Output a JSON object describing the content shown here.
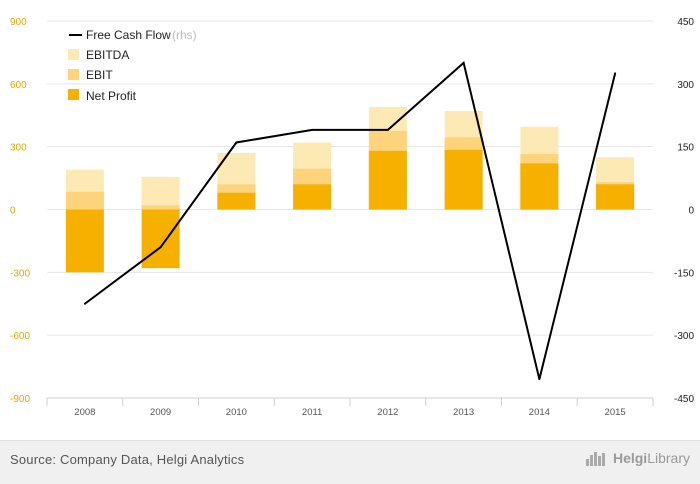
{
  "chart_data": {
    "type": "bar",
    "categories": [
      "2008",
      "2009",
      "2010",
      "2011",
      "2012",
      "2013",
      "2014",
      "2015"
    ],
    "series": [
      {
        "name": "EBITDA",
        "kind": "bar",
        "values": [
          190,
          155,
          270,
          320,
          490,
          470,
          395,
          250
        ]
      },
      {
        "name": "EBIT",
        "kind": "bar",
        "values": [
          85,
          20,
          120,
          195,
          375,
          345,
          265,
          130
        ]
      },
      {
        "name": "Net Profit",
        "kind": "bar",
        "values": [
          -300,
          -280,
          80,
          120,
          280,
          285,
          220,
          120
        ]
      },
      {
        "name": "Free Cash Flow",
        "kind": "line",
        "axis": "rhs",
        "values": [
          -225,
          -90,
          160,
          190,
          190,
          350,
          -405,
          325
        ]
      }
    ],
    "ylim": [
      -900,
      900
    ],
    "yticks": [
      "900",
      "600",
      "300",
      "0",
      "-300",
      "-600",
      "-900"
    ],
    "y2lim": [
      -450,
      450
    ],
    "y2ticks": [
      "450",
      "300",
      "150",
      "0",
      "-150",
      "-300",
      "-450"
    ],
    "legend": {
      "items": [
        "Free Cash Flow",
        "EBITDA",
        "EBIT",
        "Net Profit"
      ],
      "rhs_note": "(rhs)"
    },
    "colors": {
      "EBITDA": "#fde9b4",
      "EBIT": "#fdd47c",
      "Net Profit": "#f6b000",
      "Free Cash Flow": "#000000",
      "left_axis": "#e6a700"
    }
  },
  "footer": {
    "source": "Source: Company Data, Helgi Analytics",
    "brand_bold": "Helgi",
    "brand_rest": "Library"
  }
}
